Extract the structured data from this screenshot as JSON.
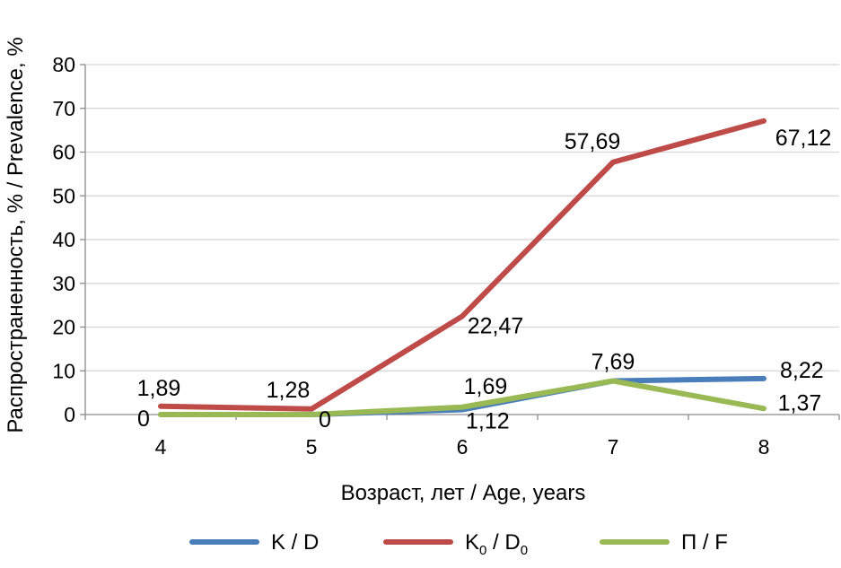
{
  "chart_data": {
    "type": "line",
    "title": "",
    "xlabel": "Возраст, лет / Age, years",
    "ylabel": "Распространенность, % / Prevalence, %",
    "x": [
      "4",
      "5",
      "6",
      "7",
      "8"
    ],
    "ylim": [
      0,
      80
    ],
    "yticks": [
      "0",
      "10",
      "20",
      "30",
      "40",
      "50",
      "60",
      "70",
      "80"
    ],
    "grid": true,
    "legend_position": "bottom",
    "series": [
      {
        "name": "K / D",
        "color": "#4A7EBB",
        "values": [
          0,
          0,
          1.12,
          7.69,
          8.22
        ],
        "labels": [
          "0",
          "0",
          "1,12",
          "",
          "8,22"
        ]
      },
      {
        "name": "K0 / D0",
        "legend_parts": {
          "a": "K",
          "a_sub": "0",
          "sep": " / ",
          "b": "D",
          "b_sub": "0"
        },
        "color": "#BE4B48",
        "values": [
          1.89,
          1.28,
          22.47,
          57.69,
          67.12
        ],
        "labels": [
          "1,89",
          "1,28",
          "22,47",
          "57,69",
          "67,12"
        ]
      },
      {
        "name": "П / F",
        "color": "#98B954",
        "values": [
          0,
          0,
          1.69,
          7.69,
          1.37
        ],
        "labels": [
          "",
          "",
          "1,69",
          "7,69",
          "1,37"
        ]
      }
    ]
  }
}
